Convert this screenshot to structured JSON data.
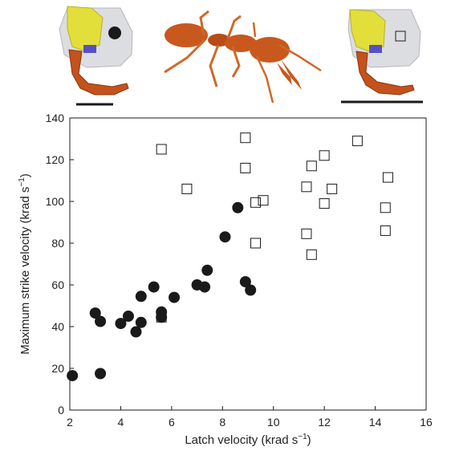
{
  "chart_data": {
    "type": "scatter",
    "title": "",
    "xlabel_main": "Latch velocity (krad s",
    "xlabel_sup": "−1",
    "xlabel_end": ")",
    "ylabel_main": "Maximum strike velocity (krad s",
    "ylabel_sup": "−1",
    "ylabel_end": ")",
    "xlim": [
      2,
      16
    ],
    "ylim": [
      0,
      140
    ],
    "xticks": [
      2,
      4,
      6,
      8,
      10,
      12,
      14,
      16
    ],
    "yticks": [
      0,
      20,
      40,
      60,
      80,
      100,
      120,
      140
    ],
    "grid": false,
    "legend": "none",
    "series": [
      {
        "marker": "filled-circle",
        "color": "#1a1a1a",
        "points": [
          [
            2.1,
            16.5
          ],
          [
            3.0,
            46.5
          ],
          [
            3.2,
            42.5
          ],
          [
            3.2,
            17.5
          ],
          [
            4.0,
            41.5
          ],
          [
            4.3,
            45.0
          ],
          [
            4.6,
            37.5
          ],
          [
            4.8,
            54.5
          ],
          [
            4.8,
            42.0
          ],
          [
            5.3,
            59.0
          ],
          [
            5.6,
            44.5
          ],
          [
            5.6,
            47.0
          ],
          [
            6.1,
            54.0
          ],
          [
            7.0,
            60.0
          ],
          [
            7.3,
            59.0
          ],
          [
            7.4,
            67.0
          ],
          [
            8.1,
            83.0
          ],
          [
            8.6,
            97.0
          ],
          [
            8.9,
            61.5
          ],
          [
            9.1,
            57.5
          ]
        ]
      },
      {
        "marker": "open-square",
        "color": "#1a1a1a",
        "points": [
          [
            5.6,
            125.0
          ],
          [
            6.6,
            106.0
          ],
          [
            8.9,
            130.5
          ],
          [
            8.9,
            116.0
          ],
          [
            9.3,
            99.5
          ],
          [
            9.6,
            100.5
          ],
          [
            9.3,
            80.0
          ],
          [
            5.6,
            44.5
          ],
          [
            11.3,
            107.0
          ],
          [
            11.5,
            117.0
          ],
          [
            12.0,
            122.0
          ],
          [
            12.3,
            106.0
          ],
          [
            12.0,
            99.0
          ],
          [
            11.3,
            84.5
          ],
          [
            11.5,
            74.5
          ],
          [
            13.3,
            129.0
          ],
          [
            14.5,
            111.5
          ],
          [
            14.4,
            97.0
          ],
          [
            14.4,
            86.0
          ]
        ]
      }
    ]
  },
  "icons": {
    "left_inset": "mandible-latch-circle-icon",
    "center": "trap-jaw-ant-icon",
    "right_inset": "mandible-latch-square-icon"
  },
  "colors": {
    "ink": "#1a1a1a",
    "yellow": "#e2de3a",
    "blue": "#5550c8",
    "orange": "#c4521b"
  }
}
